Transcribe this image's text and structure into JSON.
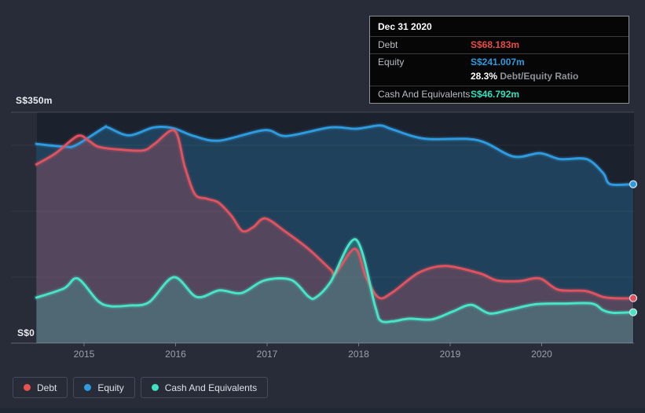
{
  "colors": {
    "page_bg": "#272c38",
    "plot_bg": "#1b212d",
    "debt_line": "#df5260",
    "debt_bright": "#e84c45",
    "equity_line": "#2e9be0",
    "cash_line": "#49e3c5",
    "cash_bright": "#30e0bd",
    "grid_major": "rgba(255,255,255,0.16)",
    "grid_minor": "rgba(255,255,255,0.06)",
    "axis_line": "rgba(255,255,255,0.28)",
    "tick_label": "#9ba1ac"
  },
  "y_axis": {
    "top_label": "S$350m",
    "bottom_label": "S$0"
  },
  "tooltip": {
    "date": "Dec 31 2020",
    "rows": [
      {
        "label": "Debt",
        "value": "S$68.183m"
      },
      {
        "label": "Equity",
        "value": "S$241.007m",
        "ratio_value": "28.3%",
        "ratio_label": "Debt/Equity Ratio"
      },
      {
        "label": "Cash And Equivalents",
        "value": "S$46.792m"
      }
    ]
  },
  "legend": [
    {
      "label": "Debt",
      "color": "#e8524d"
    },
    {
      "label": "Equity",
      "color": "#2e9be0"
    },
    {
      "label": "Cash And Equivalents",
      "color": "#3ce2c2"
    }
  ],
  "chart_data": {
    "type": "area",
    "x_ticks": [
      2015,
      2016,
      2017,
      2018,
      2019,
      2020
    ],
    "x_range": [
      2014.48,
      2021.0
    ],
    "y_range": [
      0,
      350
    ],
    "y_unit": "S$m",
    "y_gridlines": [
      100,
      200,
      300
    ],
    "y_top_gridline": 350,
    "grid": true,
    "legend_position": "bottom-left",
    "series": [
      {
        "name": "Debt",
        "color": "#df5260",
        "fill": "rgba(219,88,102,0.28)",
        "z": 1,
        "points": [
          [
            2014.48,
            271
          ],
          [
            2014.69,
            288
          ],
          [
            2014.93,
            314
          ],
          [
            2015.05,
            307
          ],
          [
            2015.15,
            298
          ],
          [
            2015.34,
            294
          ],
          [
            2015.64,
            292
          ],
          [
            2015.77,
            302
          ],
          [
            2015.99,
            322
          ],
          [
            2016.1,
            268
          ],
          [
            2016.21,
            226
          ],
          [
            2016.34,
            219
          ],
          [
            2016.47,
            213
          ],
          [
            2016.61,
            193
          ],
          [
            2016.73,
            170
          ],
          [
            2016.85,
            176
          ],
          [
            2016.98,
            189
          ],
          [
            2017.2,
            169
          ],
          [
            2017.45,
            143
          ],
          [
            2017.69,
            112
          ],
          [
            2017.75,
            106
          ],
          [
            2017.96,
            143
          ],
          [
            2018.08,
            100
          ],
          [
            2018.22,
            69
          ],
          [
            2018.37,
            77
          ],
          [
            2018.66,
            107
          ],
          [
            2018.95,
            117
          ],
          [
            2019.32,
            106
          ],
          [
            2019.51,
            95
          ],
          [
            2019.75,
            94
          ],
          [
            2019.98,
            98
          ],
          [
            2020.18,
            81
          ],
          [
            2020.48,
            79
          ],
          [
            2020.67,
            70
          ],
          [
            2020.82,
            68
          ],
          [
            2021.0,
            68.183
          ]
        ]
      },
      {
        "name": "Equity",
        "color": "#2e9be0",
        "fill": "rgba(46,140,200,0.30)",
        "z": 0,
        "points": [
          [
            2014.48,
            302
          ],
          [
            2014.78,
            298
          ],
          [
            2014.91,
            300
          ],
          [
            2015.21,
            326
          ],
          [
            2015.26,
            327
          ],
          [
            2015.49,
            315
          ],
          [
            2015.76,
            327
          ],
          [
            2015.97,
            326
          ],
          [
            2016.2,
            314
          ],
          [
            2016.48,
            307
          ],
          [
            2016.97,
            323
          ],
          [
            2017.21,
            314
          ],
          [
            2017.69,
            327
          ],
          [
            2017.97,
            325
          ],
          [
            2018.23,
            330
          ],
          [
            2018.37,
            324
          ],
          [
            2018.72,
            310
          ],
          [
            2019.29,
            308
          ],
          [
            2019.69,
            283
          ],
          [
            2019.98,
            288
          ],
          [
            2020.2,
            279
          ],
          [
            2020.49,
            279
          ],
          [
            2020.67,
            258
          ],
          [
            2020.75,
            241
          ],
          [
            2021.0,
            241.007
          ]
        ]
      },
      {
        "name": "Cash And Equivalents",
        "color": "#49e3c5",
        "fill": "rgba(64,222,194,0.22)",
        "z": 2,
        "points": [
          [
            2014.48,
            69
          ],
          [
            2014.78,
            83
          ],
          [
            2014.93,
            98
          ],
          [
            2015.15,
            64
          ],
          [
            2015.29,
            56
          ],
          [
            2015.49,
            57
          ],
          [
            2015.71,
            62
          ],
          [
            2015.98,
            100
          ],
          [
            2016.23,
            70
          ],
          [
            2016.48,
            80
          ],
          [
            2016.72,
            76
          ],
          [
            2016.97,
            95
          ],
          [
            2017.26,
            96
          ],
          [
            2017.45,
            71
          ],
          [
            2017.53,
            69
          ],
          [
            2017.69,
            92
          ],
          [
            2017.97,
            157
          ],
          [
            2018.18,
            56
          ],
          [
            2018.24,
            34
          ],
          [
            2018.37,
            33
          ],
          [
            2018.55,
            37
          ],
          [
            2018.8,
            36
          ],
          [
            2019.03,
            48
          ],
          [
            2019.23,
            58
          ],
          [
            2019.43,
            45
          ],
          [
            2019.66,
            51
          ],
          [
            2019.94,
            59
          ],
          [
            2020.26,
            60
          ],
          [
            2020.55,
            60
          ],
          [
            2020.67,
            50
          ],
          [
            2020.78,
            46
          ],
          [
            2021.0,
            46.792
          ]
        ]
      }
    ]
  }
}
